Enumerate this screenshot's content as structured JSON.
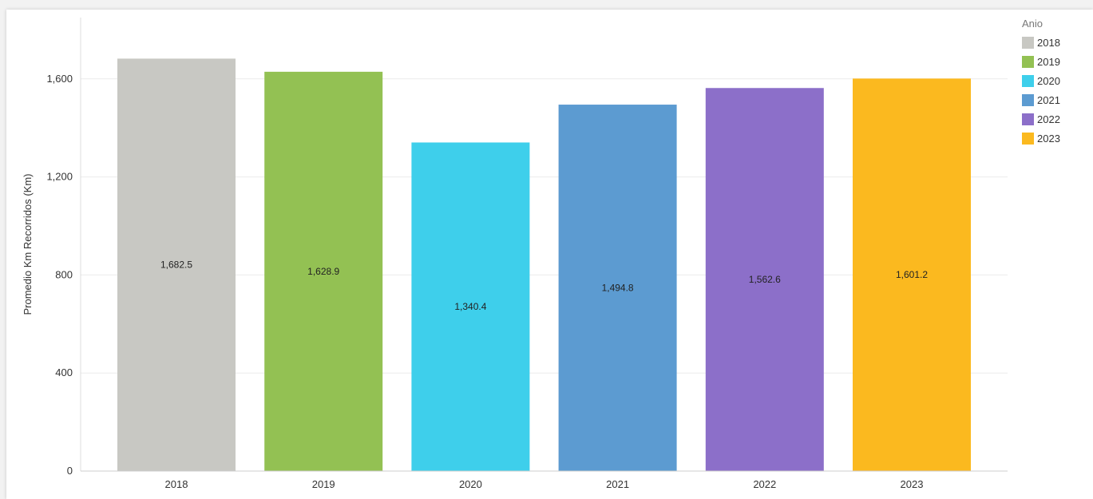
{
  "chart_data": {
    "type": "bar",
    "categories": [
      "2018",
      "2019",
      "2020",
      "2021",
      "2022",
      "2023"
    ],
    "values": [
      1682.5,
      1628.9,
      1340.4,
      1494.8,
      1562.6,
      1601.2
    ],
    "value_labels": [
      "1,682.5",
      "1,628.9",
      "1,340.4",
      "1,494.8",
      "1,562.6",
      "1,601.2"
    ],
    "colors": [
      "#c8c8c3",
      "#93c153",
      "#3ecfeb",
      "#5c9bd1",
      "#8c6fc9",
      "#fbb91f"
    ],
    "title": "",
    "xlabel": "",
    "ylabel": "Promedio Km Recorridos (Km)",
    "ylim": [
      0,
      1850
    ],
    "yticks": [
      0,
      400,
      800,
      1200,
      1600
    ],
    "ytick_labels": [
      "0",
      "400",
      "800",
      "1,200",
      "1,600"
    ],
    "grid": true,
    "legend": {
      "title": "Anio",
      "position": "top-right",
      "entries": [
        "2018",
        "2019",
        "2020",
        "2021",
        "2022",
        "2023"
      ]
    }
  }
}
